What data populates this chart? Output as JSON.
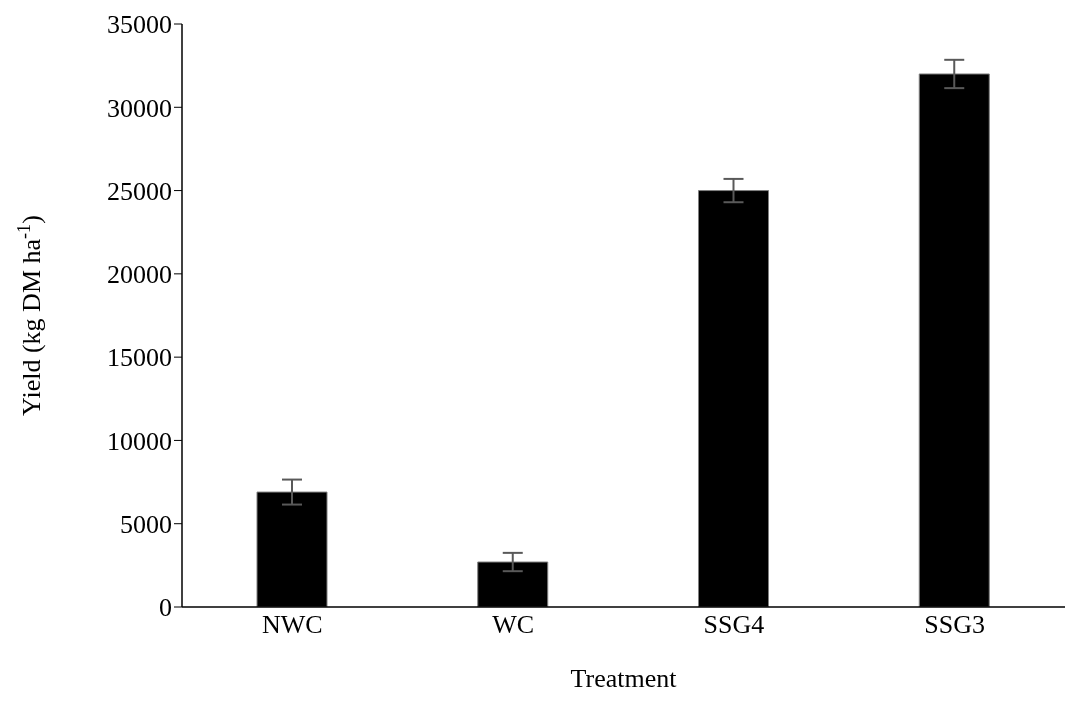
{
  "chart_data": {
    "type": "bar",
    "xlabel": "Treatment",
    "ylabel": "Yield (kg DM ha$^{-1}$)",
    "categories": [
      "NWC",
      "WC",
      "SSG4",
      "SSG3"
    ],
    "values": [
      6900,
      2700,
      25000,
      32000
    ],
    "errors": [
      750,
      550,
      700,
      850
    ],
    "color": "#000000",
    "ylim": [
      0,
      35000
    ],
    "yticks": [
      0,
      5000,
      10000,
      15000,
      20000,
      25000,
      30000,
      35000
    ],
    "grid": false,
    "legend": false
  }
}
